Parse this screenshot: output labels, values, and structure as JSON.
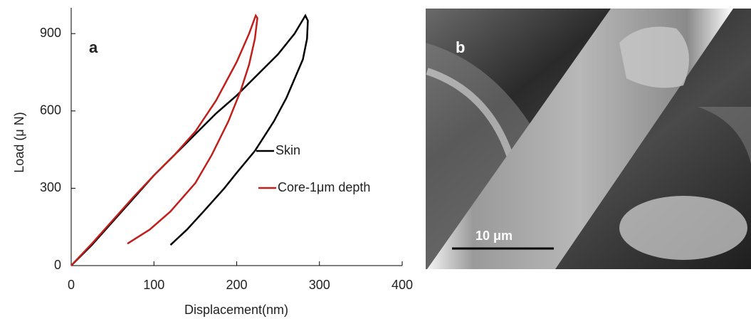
{
  "chart_data": {
    "type": "line",
    "label": "a",
    "xlabel": "Displacement(nm)",
    "ylabel": "Load (μ N)",
    "xlim": [
      0,
      400
    ],
    "xticks": [
      0,
      100,
      200,
      300,
      400
    ],
    "ylim": [
      0,
      1000
    ],
    "yticks": [
      0,
      300,
      600,
      900
    ],
    "series": [
      {
        "name": "Skin",
        "color": "#000000",
        "x": [
          0,
          25,
          50,
          75,
          100,
          125,
          150,
          175,
          200,
          225,
          250,
          270,
          283,
          286,
          285,
          280,
          272,
          260,
          245,
          222,
          200,
          185,
          160,
          140,
          120
        ],
        "values": [
          0,
          80,
          170,
          260,
          350,
          430,
          510,
          590,
          660,
          740,
          820,
          900,
          970,
          950,
          880,
          800,
          740,
          650,
          560,
          445,
          360,
          300,
          210,
          140,
          80
        ]
      },
      {
        "name": "Core-1μm depth",
        "color": "#c0201c",
        "x": [
          0,
          25,
          50,
          75,
          100,
          125,
          150,
          175,
          200,
          215,
          223,
          225,
          222,
          215,
          205,
          190,
          170,
          150,
          120,
          95,
          68
        ],
        "values": [
          0,
          85,
          175,
          265,
          350,
          430,
          520,
          640,
          790,
          900,
          970,
          960,
          880,
          780,
          680,
          560,
          430,
          320,
          210,
          140,
          85
        ]
      }
    ]
  },
  "panel_b": {
    "label": "b",
    "scale_bar": "10 μm"
  }
}
